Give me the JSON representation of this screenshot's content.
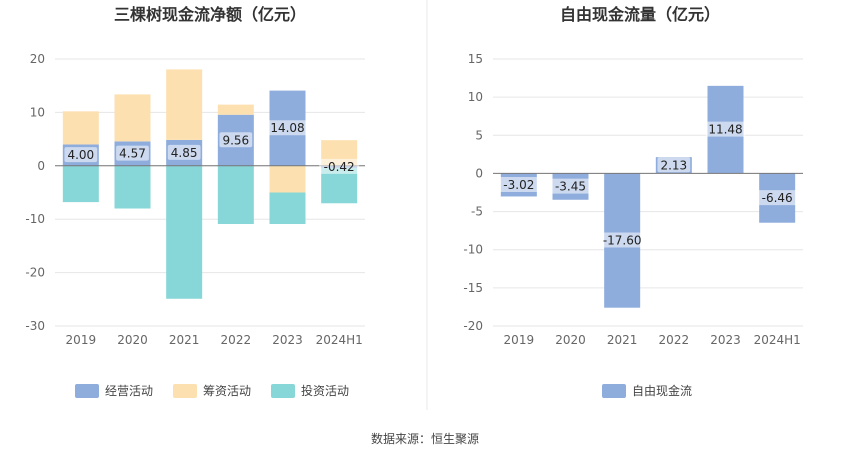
{
  "chart_data": [
    {
      "type": "bar",
      "stacked": true,
      "title": "三棵树现金流净额（亿元）",
      "categories": [
        "2019",
        "2020",
        "2021",
        "2022",
        "2023",
        "2024H1"
      ],
      "ylim": [
        -30,
        20
      ],
      "yticks": [
        20,
        10,
        0,
        -10,
        -20,
        -30
      ],
      "grid": true,
      "legend_position": "bottom",
      "series": [
        {
          "name": "经营活动",
          "color": "#8eacdc",
          "values": [
            4.0,
            4.57,
            4.85,
            9.56,
            14.08,
            -0.42
          ],
          "labels": [
            "4.00",
            "4.57",
            "4.85",
            "9.56",
            "14.08",
            "-0.42"
          ]
        },
        {
          "name": "筹资活动",
          "color": "#fde0b0",
          "values": [
            6.2,
            8.8,
            13.2,
            1.9,
            -5.0,
            4.8
          ]
        },
        {
          "name": "投资活动",
          "color": "#88d7d8",
          "values": [
            -6.8,
            -8.0,
            -24.9,
            -10.9,
            -5.9,
            -6.6
          ]
        }
      ]
    },
    {
      "type": "bar",
      "title": "自由现金流量（亿元）",
      "categories": [
        "2019",
        "2020",
        "2021",
        "2022",
        "2023",
        "2024H1"
      ],
      "ylim": [
        -20,
        15
      ],
      "yticks": [
        15,
        10,
        5,
        0,
        -5,
        -10,
        -15,
        -20
      ],
      "grid": true,
      "legend_position": "bottom",
      "series": [
        {
          "name": "自由现金流",
          "color": "#8eacdc",
          "values": [
            -3.02,
            -3.45,
            -17.6,
            2.13,
            11.48,
            -6.46
          ],
          "labels": [
            "-3.02",
            "-3.45",
            "-17.60",
            "2.13",
            "11.48",
            "-6.46"
          ]
        }
      ]
    }
  ],
  "source_note": "数据来源：恒生聚源"
}
